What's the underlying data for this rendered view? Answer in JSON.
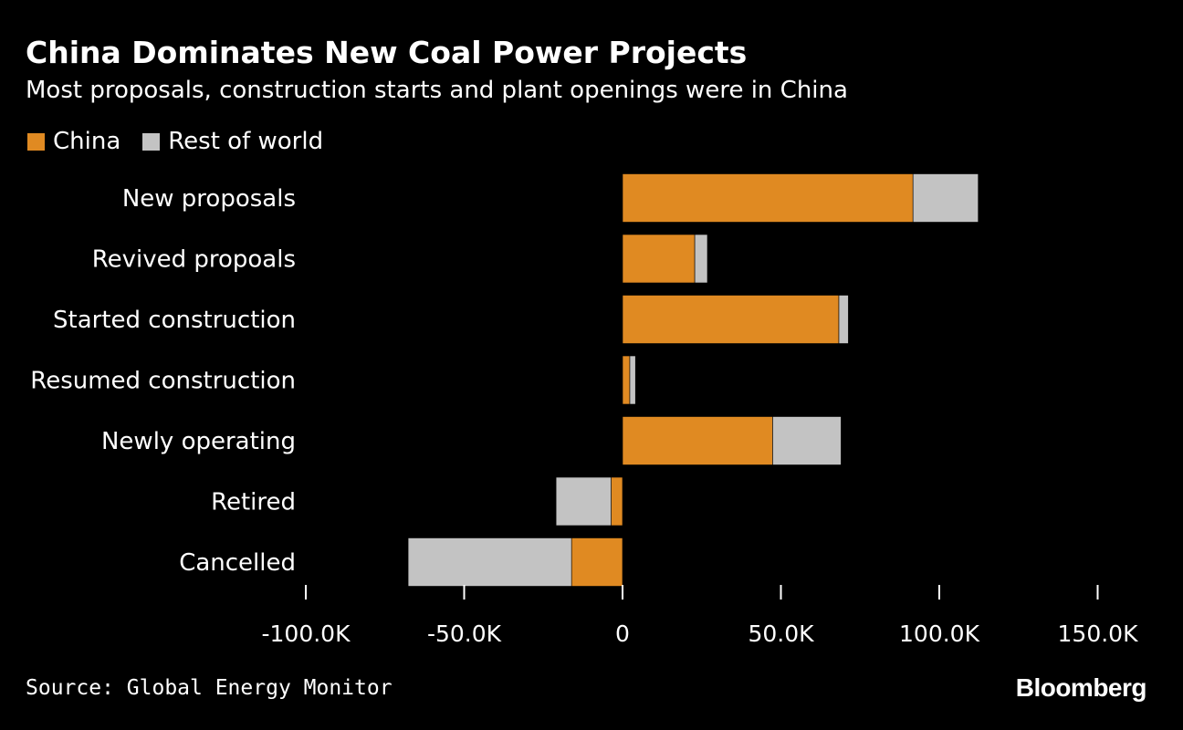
{
  "colors": {
    "background": "#000000",
    "china": "#e08a22",
    "rest_of_world": "#c3c3c3",
    "text": "#ffffff",
    "axis": "#ffffff"
  },
  "chart_data": {
    "type": "bar",
    "orientation": "horizontal",
    "stacked": true,
    "title": "China Dominates New Coal Power Projects",
    "subtitle": "Most proposals, construction starts and plant openings were in China",
    "categories": [
      "New proposals",
      "Revived propoals",
      "Started construction",
      "Resumed construction",
      "Newly operating",
      "Retired",
      "Cancelled"
    ],
    "series": [
      {
        "name": "China",
        "values": [
          91700,
          22800,
          68300,
          2300,
          47400,
          -3600,
          -16100
        ]
      },
      {
        "name": "Rest of world",
        "values": [
          20600,
          4000,
          3000,
          1800,
          21600,
          -17400,
          -51600
        ]
      }
    ],
    "xlim": [
      -105000,
      160000
    ],
    "xticks": [
      -100000,
      -50000,
      0,
      50000,
      100000,
      150000
    ],
    "xtick_labels": [
      "-100.0K",
      "-50.0K",
      "0",
      "50.0K",
      "100.0K",
      "150.0K"
    ],
    "xlabel": "",
    "ylabel": "",
    "grid": false,
    "legend": "top-left"
  },
  "source": "Source: Global Energy Monitor",
  "brand": "Bloomberg"
}
